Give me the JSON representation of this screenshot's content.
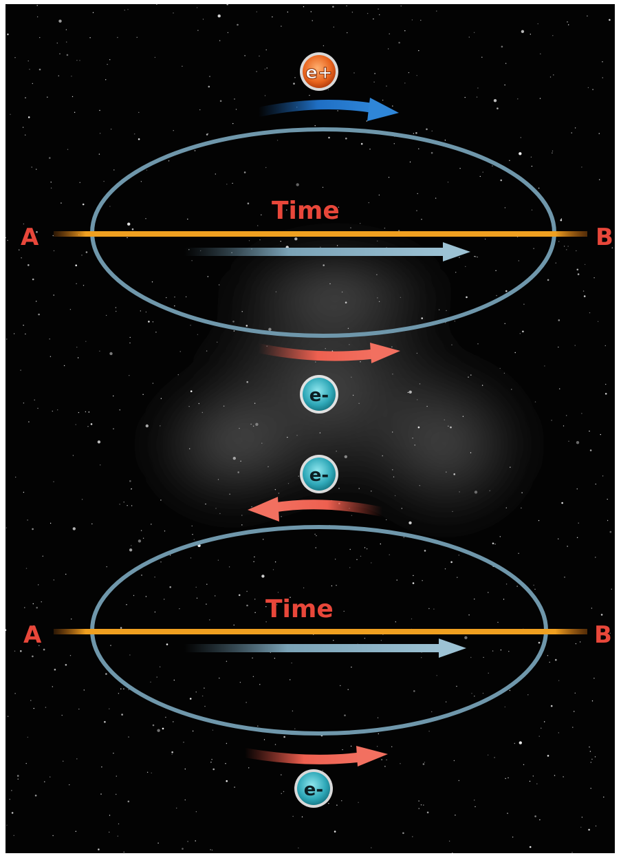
{
  "diagram": {
    "top_loop": {
      "left_label": "A",
      "right_label": "B",
      "axis_label": "Time",
      "particle_above": "e+",
      "particle_below": "e-"
    },
    "bottom_loop": {
      "left_label": "A",
      "right_label": "B",
      "axis_label": "Time",
      "particle_above": "e-",
      "particle_below": "e-"
    },
    "colors": {
      "background": "#030303",
      "loop": "#6f97ab",
      "time_line": "#f0a020",
      "label": "#e8473a",
      "positron": "#f07a2a",
      "electron": "#3fb6c4",
      "blue_arrow": "#1f6fc4",
      "red_arrow": "#ee6050",
      "time_arrow": "#8ab4c8"
    }
  }
}
